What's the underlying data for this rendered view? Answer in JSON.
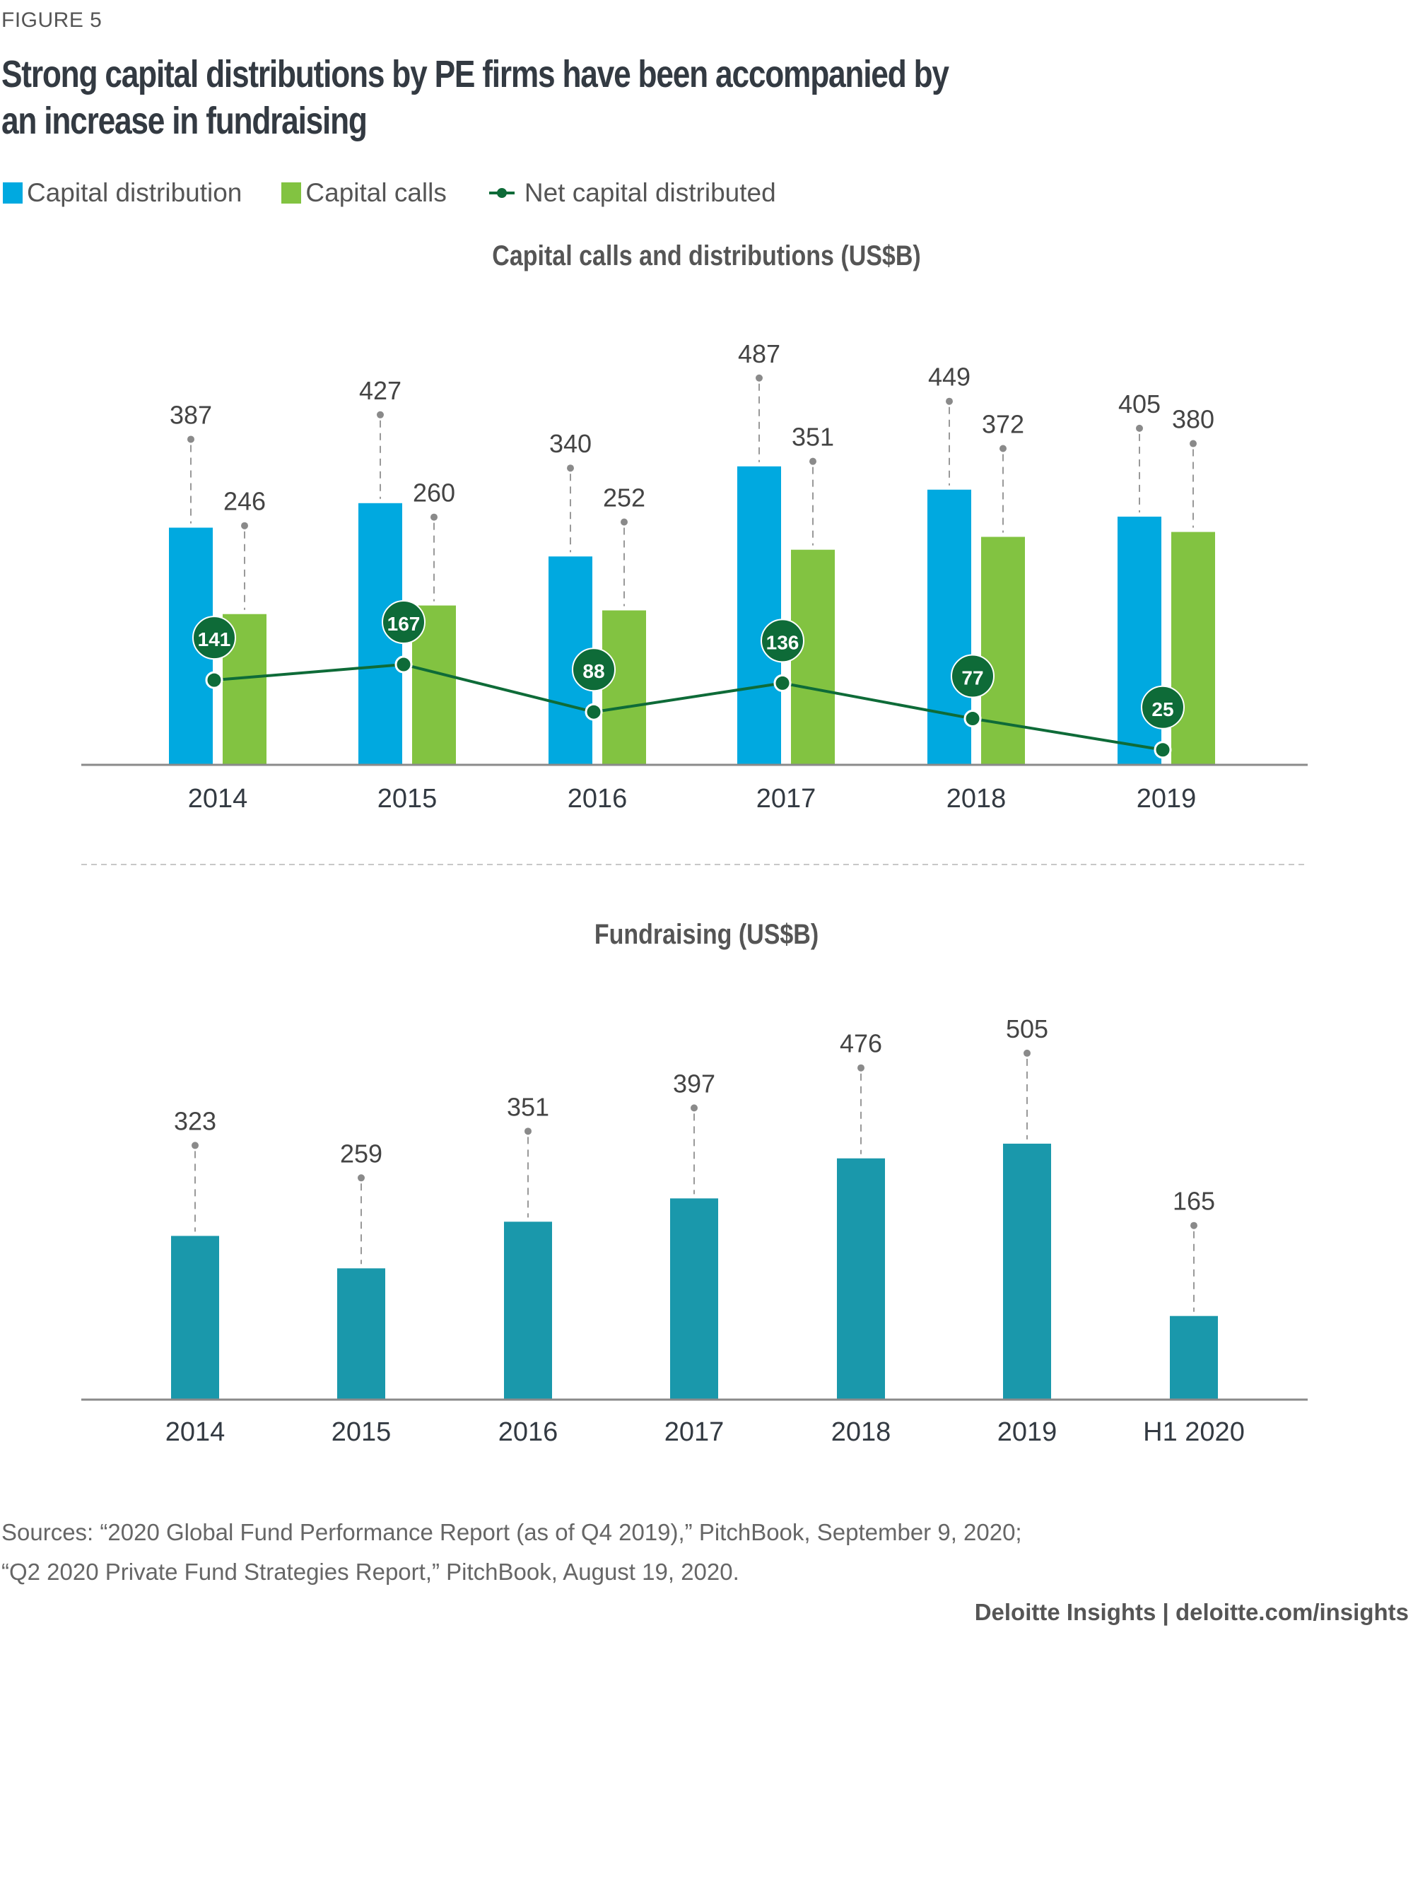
{
  "figure_label": "FIGURE 5",
  "title": "Strong capital distributions by PE firms have been accompanied by an increase in fundraising",
  "colors": {
    "capital_distribution": "#00a9e0",
    "capital_calls": "#82c341",
    "net_capital": "#0e6b38",
    "fundraising": "#1a98ab",
    "axis": "#8a8a8a",
    "leader": "#999999"
  },
  "legend": {
    "capital_distribution": "Capital distribution",
    "capital_calls": "Capital calls",
    "net_capital": "Net capital distributed"
  },
  "chart_data": [
    {
      "type": "bar",
      "title": "Capital calls and distributions (US$B)",
      "xlabel": "",
      "ylabel": "",
      "categories": [
        "2014",
        "2015",
        "2016",
        "2017",
        "2018",
        "2019"
      ],
      "series": [
        {
          "name": "Capital distribution",
          "kind": "bar",
          "values": [
            387,
            427,
            340,
            487,
            449,
            405
          ]
        },
        {
          "name": "Capital calls",
          "kind": "bar",
          "values": [
            246,
            260,
            252,
            351,
            372,
            380
          ]
        },
        {
          "name": "Net capital distributed",
          "kind": "line",
          "values": [
            141,
            167,
            88,
            136,
            77,
            25
          ]
        }
      ],
      "grid": false,
      "legend_position": "top-left"
    },
    {
      "type": "bar",
      "title": "Fundraising (US$B)",
      "xlabel": "",
      "ylabel": "",
      "categories": [
        "2014",
        "2015",
        "2016",
        "2017",
        "2018",
        "2019",
        "H1 2020"
      ],
      "series": [
        {
          "name": "Fundraising",
          "kind": "bar",
          "values": [
            323,
            259,
            351,
            397,
            476,
            505,
            165
          ]
        }
      ],
      "grid": false
    }
  ],
  "sources": [
    "Sources: “2020 Global Fund Performance Report (as of Q4 2019),” PitchBook, September 9, 2020;",
    "“Q2 2020 Private Fund Strategies Report,” PitchBook, August 19, 2020."
  ],
  "credit": "Deloitte Insights | deloitte.com/insights"
}
